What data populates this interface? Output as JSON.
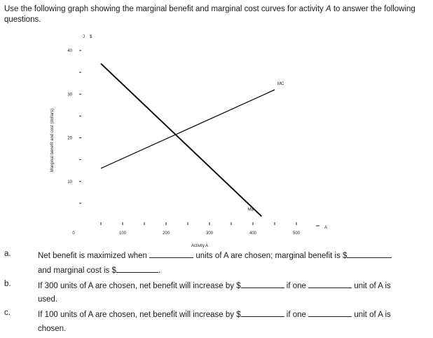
{
  "intro": {
    "prefix": "Use the following graph showing the marginal benefit and marginal cost curves for activity ",
    "activity": "A",
    "suffix": " to answer the following questions."
  },
  "chart_data": {
    "type": "line",
    "title": "",
    "y_unit": "$",
    "ylabel": "Marginal benefit and cost (dollars)",
    "xlabel": "Activity A",
    "x_axis_end_label": "A",
    "xlim": [
      0,
      500
    ],
    "ylim": [
      0,
      40
    ],
    "x_ticks": [
      0,
      100,
      200,
      300,
      400,
      500
    ],
    "x_tick_labels": [
      "0",
      "100",
      "200",
      "300",
      "400",
      "500"
    ],
    "y_ticks": [
      10,
      20,
      30,
      40
    ],
    "y_tick_labels": [
      "10",
      "20",
      "30",
      "40"
    ],
    "grid": false,
    "legend": "none",
    "series": [
      {
        "name": "MC",
        "x": [
          50,
          450
        ],
        "y": [
          13,
          31
        ]
      },
      {
        "name": "MB",
        "x": [
          50,
          420
        ],
        "y": [
          37,
          2
        ]
      }
    ]
  },
  "questions": [
    {
      "label": "a.",
      "lines": [
        {
          "segments": [
            "Net benefit is maximized when ",
            "",
            " units of A are chosen; marginal benefit is $",
            ""
          ]
        },
        {
          "segments": [
            "and marginal cost is $",
            "",
            "."
          ]
        }
      ]
    },
    {
      "label": "b.",
      "lines": [
        {
          "segments": [
            "If 300 units of A are chosen, net benefit will increase by $",
            "",
            " if one ",
            "",
            " unit of A is"
          ]
        },
        {
          "segments": [
            "used."
          ]
        }
      ]
    },
    {
      "label": "c.",
      "lines": [
        {
          "segments": [
            "If 100 units of A are chosen, net benefit will increase by $",
            "",
            " if one ",
            "",
            " unit of A is"
          ]
        },
        {
          "segments": [
            "chosen."
          ]
        }
      ]
    }
  ]
}
